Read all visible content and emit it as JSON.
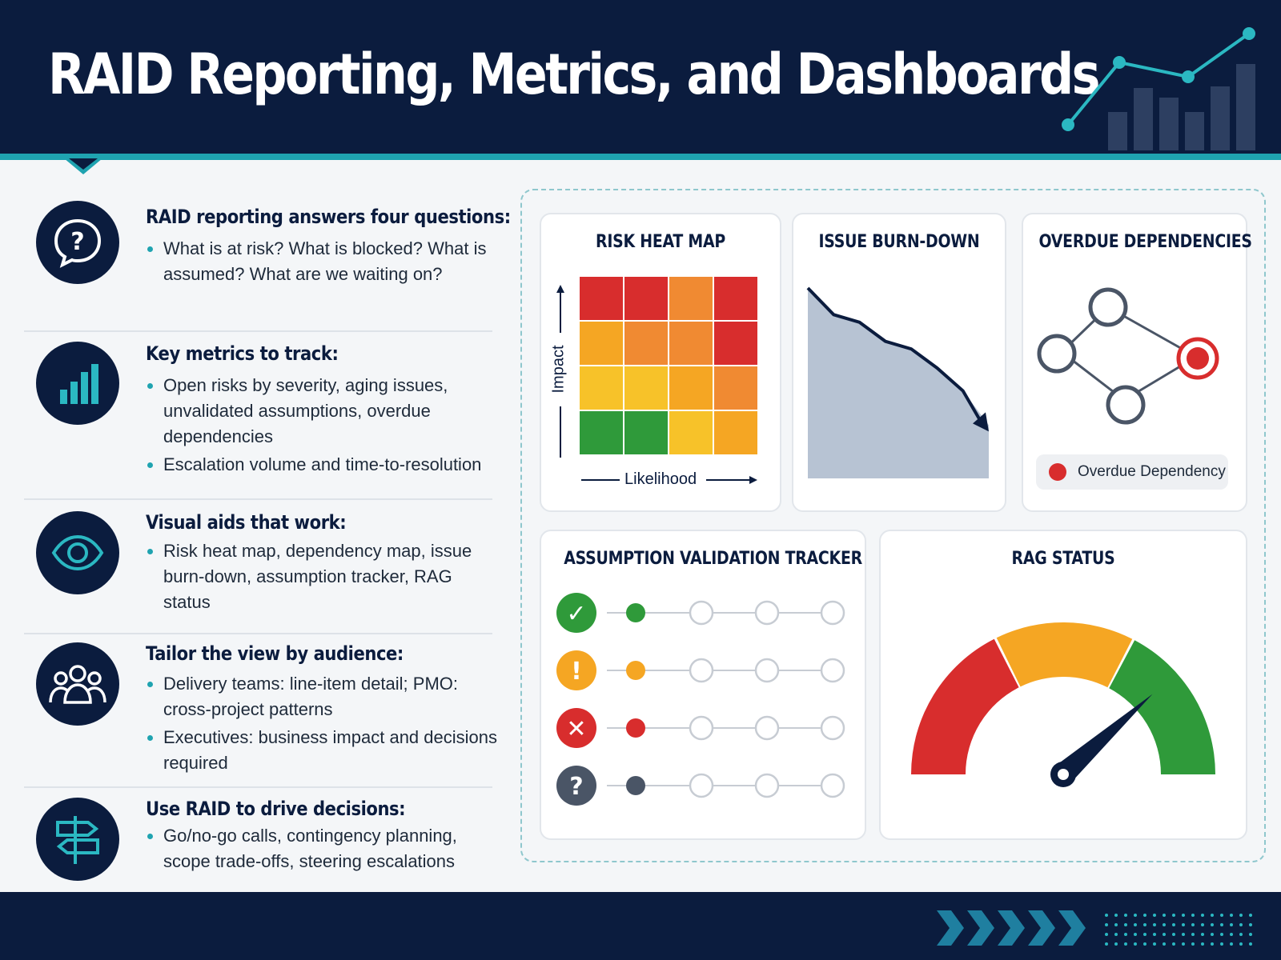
{
  "header": {
    "title": "RAID Reporting, Metrics, and Dashboards",
    "chart_icon": "line-and-bar-chart-icon"
  },
  "sections": [
    {
      "icon": "question-bubble-icon",
      "title": "RAID reporting answers four questions:",
      "bullets": [
        "What is at risk? What is blocked? What is assumed? What are we waiting on?"
      ]
    },
    {
      "icon": "bar-chart-icon",
      "title": "Key metrics to track:",
      "bullets": [
        "Open risks by severity, aging issues, unvalidated assumptions, overdue dependencies",
        "Escalation volume and time-to-resolution"
      ]
    },
    {
      "icon": "eye-icon",
      "title": "Visual aids that work:",
      "bullets": [
        "Risk heat map, dependency map, issue burn-down, assumption tracker, RAG status"
      ]
    },
    {
      "icon": "people-icon",
      "title": "Tailor the view by audience:",
      "bullets": [
        "Delivery teams: line-item detail; PMO: cross-project patterns",
        "Executives: business impact and decisions required"
      ]
    },
    {
      "icon": "signpost-icon",
      "title": "Use RAID to drive decisions:",
      "bullets": [
        "Go/no-go calls, contingency planning, scope trade-offs, steering escalations"
      ]
    }
  ],
  "cards": {
    "heatmap": {
      "title": "RISK HEAT MAP",
      "xlabel": "Likelihood",
      "ylabel": "Impact",
      "grid": [
        [
          "#d82d2d",
          "#d82d2d",
          "#f08a32",
          "#d82d2d"
        ],
        [
          "#f5a623",
          "#f08a32",
          "#f08a32",
          "#d82d2d"
        ],
        [
          "#f7c229",
          "#f7c229",
          "#f5a623",
          "#f08a32"
        ],
        [
          "#2f9a3a",
          "#2f9a3a",
          "#f7c229",
          "#f5a623"
        ]
      ]
    },
    "burndown": {
      "title": "ISSUE BURN-DOWN",
      "values": [
        100,
        86,
        82,
        72,
        68,
        58,
        46,
        28
      ]
    },
    "dependencies": {
      "title": "OVERDUE DEPENDENCIES",
      "legend": "Overdue Dependency"
    },
    "assumptions": {
      "title": "ASSUMPTION VALIDATION TRACKER",
      "rows": [
        {
          "status": "validated",
          "icon": "check-icon",
          "color": "#2f9a3a",
          "glyph": "✓"
        },
        {
          "status": "at-risk",
          "icon": "exclamation-icon",
          "color": "#f5a623",
          "glyph": "!"
        },
        {
          "status": "invalid",
          "icon": "x-icon",
          "color": "#d82d2d",
          "glyph": "✕"
        },
        {
          "status": "unknown",
          "icon": "question-icon",
          "color": "#4a5566",
          "glyph": "?"
        }
      ]
    },
    "rag": {
      "title": "RAG STATUS",
      "colors": [
        "#d82d2d",
        "#f5a623",
        "#2f9a3a"
      ]
    }
  }
}
